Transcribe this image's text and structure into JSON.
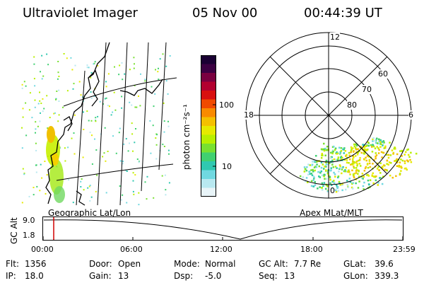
{
  "header": {
    "title": "Ultraviolet Imager",
    "date": "05 Nov 00",
    "time": "00:44:39 UT"
  },
  "colorbar": {
    "unit": "photon cm⁻²s⁻¹",
    "ticks": [
      "100",
      "10"
    ],
    "colors": [
      "#1a0033",
      "#3b0042",
      "#7a0040",
      "#b20030",
      "#d81010",
      "#f04a00",
      "#f98a00",
      "#f4c000",
      "#e6ea00",
      "#b8ef00",
      "#78e030",
      "#40d070",
      "#30c8b0",
      "#70d8e0",
      "#b8e8f0",
      "#e8f4f8"
    ]
  },
  "left_map": {
    "label": "Geographic Lat/Lon"
  },
  "polar": {
    "label": "Apex MLat/MLT",
    "mlt_labels": {
      "top": "12",
      "left": "18",
      "right": "6",
      "bottom": "0"
    },
    "lat_labels": [
      "60",
      "70",
      "80"
    ]
  },
  "timeline": {
    "axis_label": "GC Alt",
    "y_ticks": [
      "9.0",
      "1.8"
    ],
    "x_ticks": [
      "00:00",
      "06:00",
      "12:00",
      "18:00",
      "23:59"
    ]
  },
  "info": {
    "flt_label": "Flt:",
    "flt_value": "1356",
    "ip_label": "IP:",
    "ip_value": "18.0",
    "door_label": "Door:",
    "door_value": "Open",
    "gain_label": "Gain:",
    "gain_value": "13",
    "mode_label": "Mode:",
    "mode_value": "Normal",
    "dsp_label": "Dsp:",
    "dsp_value": "-5.0",
    "gcalt_label": "GC Alt:",
    "gcalt_value": "7.7 Re",
    "seq_label": "Seq:",
    "seq_value": "13",
    "glat_label": "GLat:",
    "glat_value": "39.6",
    "glon_label": "GLon:",
    "glon_value": "339.3"
  }
}
